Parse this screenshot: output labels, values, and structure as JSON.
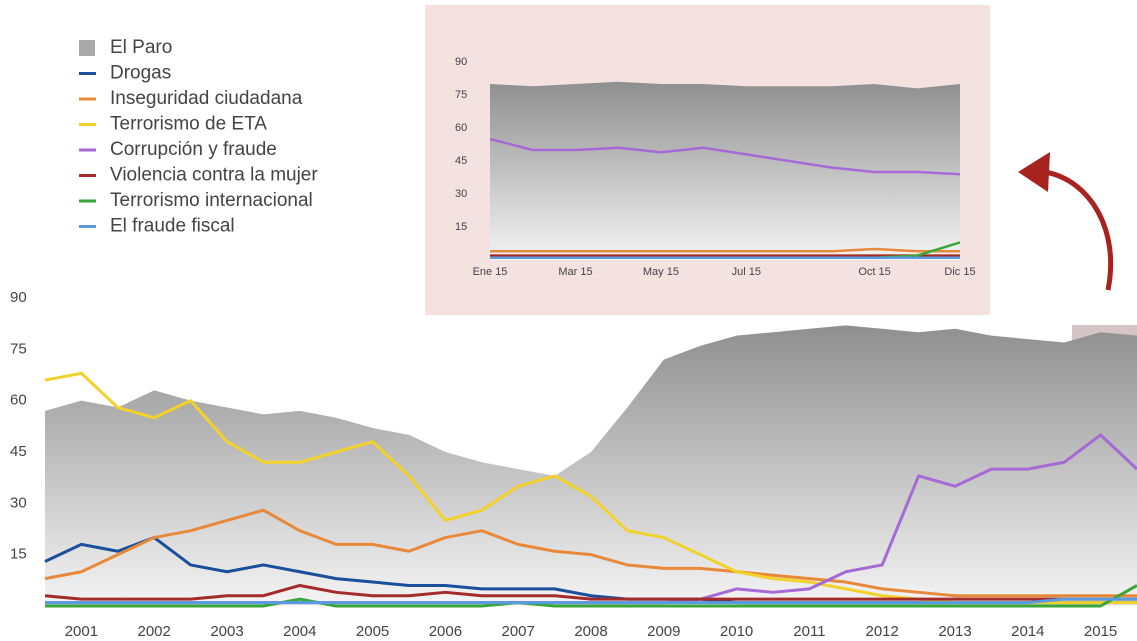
{
  "chart_data": [
    {
      "type": "line",
      "x": [
        2000.5,
        2001,
        2001.5,
        2002,
        2002.5,
        2003,
        2003.5,
        2004,
        2004.5,
        2005,
        2005.5,
        2006,
        2006.5,
        2007,
        2007.5,
        2008,
        2008.5,
        2009,
        2009.5,
        2010,
        2010.5,
        2011,
        2011.5,
        2012,
        2012.5,
        2013,
        2013.5,
        2014,
        2014.5,
        2015,
        2015.5
      ],
      "xlim": [
        2000.5,
        2015.5
      ],
      "xticks": [
        2001,
        2002,
        2003,
        2004,
        2005,
        2006,
        2007,
        2008,
        2009,
        2010,
        2011,
        2012,
        2013,
        2014,
        2015
      ],
      "ylim": [
        0,
        90
      ],
      "yticks": [
        15,
        30,
        45,
        60,
        75,
        90
      ],
      "series": [
        {
          "name": "El Paro",
          "type": "area",
          "color": "#aaaaaa",
          "values": [
            57,
            60,
            58,
            63,
            60,
            58,
            56,
            57,
            55,
            52,
            50,
            45,
            42,
            40,
            38,
            45,
            58,
            72,
            76,
            79,
            80,
            81,
            82,
            81,
            80,
            81,
            79,
            78,
            77,
            80,
            79
          ]
        },
        {
          "name": "Drogas",
          "color": "#1a4f9c",
          "values": [
            13,
            18,
            16,
            20,
            12,
            10,
            12,
            10,
            8,
            7,
            6,
            6,
            5,
            5,
            5,
            3,
            2,
            2,
            2,
            1,
            1,
            1,
            1,
            1,
            1,
            1,
            1,
            1,
            1,
            1,
            1
          ]
        },
        {
          "name": "Inseguridad ciudadana",
          "color": "#e8893a",
          "values": [
            8,
            10,
            15,
            20,
            22,
            25,
            28,
            22,
            18,
            18,
            16,
            20,
            22,
            18,
            16,
            15,
            12,
            11,
            11,
            10,
            9,
            8,
            7,
            5,
            4,
            3,
            3,
            3,
            3,
            3,
            3
          ]
        },
        {
          "name": "Terrorismo de ETA",
          "color": "#f2d22a",
          "values": [
            66,
            68,
            58,
            55,
            60,
            48,
            42,
            42,
            45,
            48,
            38,
            25,
            28,
            35,
            38,
            32,
            22,
            20,
            15,
            10,
            8,
            7,
            5,
            3,
            2,
            1,
            1,
            1,
            1,
            1,
            1
          ]
        },
        {
          "name": "Corrupción y fraude",
          "color": "#a56ad6",
          "values": [
            1,
            1,
            1,
            1,
            1,
            1,
            1,
            1,
            1,
            1,
            1,
            1,
            1,
            1,
            1,
            1,
            1,
            1,
            2,
            5,
            4,
            5,
            10,
            12,
            38,
            35,
            40,
            40,
            42,
            50,
            40
          ]
        },
        {
          "name": "Violencia contra la mujer",
          "color": "#a52a2a",
          "values": [
            3,
            2,
            2,
            2,
            2,
            3,
            3,
            6,
            4,
            3,
            3,
            4,
            3,
            3,
            3,
            2,
            2,
            2,
            2,
            2,
            2,
            2,
            2,
            2,
            2,
            2,
            2,
            2,
            2,
            2,
            2
          ]
        },
        {
          "name": "Terrorismo internacional",
          "color": "#3aa63a",
          "values": [
            0,
            0,
            0,
            0,
            0,
            0,
            0,
            2,
            0,
            0,
            0,
            0,
            0,
            1,
            0,
            0,
            0,
            0,
            0,
            0,
            0,
            0,
            0,
            0,
            0,
            0,
            0,
            0,
            0,
            0,
            6
          ]
        },
        {
          "name": "El fraude fiscal",
          "color": "#5a9be0",
          "values": [
            1,
            1,
            1,
            1,
            1,
            1,
            1,
            1,
            1,
            1,
            1,
            1,
            1,
            1,
            1,
            1,
            1,
            1,
            1,
            1,
            1,
            1,
            1,
            1,
            1,
            1,
            1,
            1,
            2,
            2,
            2
          ]
        }
      ]
    },
    {
      "type": "line",
      "x": [
        1,
        2,
        3,
        4,
        5,
        6,
        7,
        8,
        9,
        10,
        11,
        12
      ],
      "xlim": [
        1,
        12
      ],
      "xticks": [
        {
          "value": 1,
          "label": "Ene 15"
        },
        {
          "value": 3,
          "label": "Mar 15"
        },
        {
          "value": 5,
          "label": "May 15"
        },
        {
          "value": 7,
          "label": "Jul 15"
        },
        {
          "value": 10,
          "label": "Oct 15"
        },
        {
          "value": 12,
          "label": "Dic 15"
        }
      ],
      "ylim": [
        0,
        90
      ],
      "yticks": [
        15,
        30,
        45,
        60,
        75,
        90
      ],
      "series": [
        {
          "name": "El Paro",
          "type": "area",
          "color": "#aaaaaa",
          "values": [
            80,
            79,
            80,
            81,
            80,
            80,
            79,
            79,
            79,
            80,
            78,
            80
          ]
        },
        {
          "name": "Drogas",
          "color": "#1a4f9c",
          "values": [
            1,
            1,
            1,
            1,
            1,
            1,
            1,
            1,
            1,
            1,
            1,
            1
          ]
        },
        {
          "name": "Inseguridad ciudadana",
          "color": "#e8893a",
          "values": [
            4,
            4,
            4,
            4,
            4,
            4,
            4,
            4,
            4,
            5,
            4,
            4
          ]
        },
        {
          "name": "Terrorismo de ETA",
          "color": "#f2d22a",
          "values": [
            2,
            2,
            2,
            2,
            2,
            2,
            2,
            2,
            2,
            2,
            2,
            2
          ]
        },
        {
          "name": "Corrupción y fraude",
          "color": "#a56ad6",
          "values": [
            55,
            50,
            50,
            51,
            49,
            51,
            48,
            45,
            42,
            40,
            40,
            39
          ]
        },
        {
          "name": "Violencia contra la mujer",
          "color": "#a52a2a",
          "values": [
            2,
            2,
            2,
            2,
            2,
            2,
            2,
            2,
            2,
            2,
            2,
            2
          ]
        },
        {
          "name": "Terrorismo internacional",
          "color": "#3aa63a",
          "values": [
            1,
            1,
            1,
            1,
            1,
            1,
            1,
            1,
            1,
            1,
            2,
            8
          ]
        },
        {
          "name": "El fraude fiscal",
          "color": "#5a9be0",
          "values": [
            1,
            1,
            1,
            1,
            1,
            1,
            1,
            1,
            1,
            1,
            1,
            1
          ]
        }
      ]
    }
  ]
}
